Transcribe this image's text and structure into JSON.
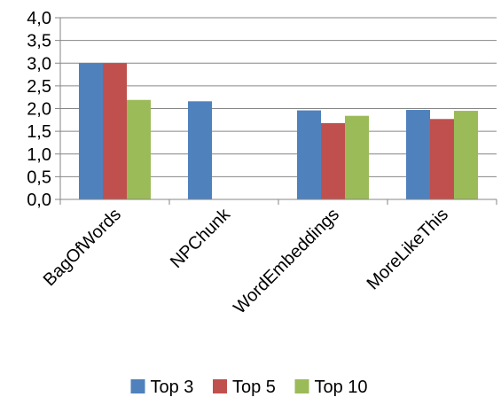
{
  "chart_data": {
    "type": "bar",
    "categories": [
      "BagOfWords",
      "NPChunk",
      "WordEmbeddings",
      "MoreLikeThis"
    ],
    "series": [
      {
        "name": "Top 3",
        "values": [
          3.0,
          2.16,
          1.96,
          1.97
        ],
        "color": "#4F81BD"
      },
      {
        "name": "Top 5",
        "values": [
          3.0,
          null,
          1.68,
          1.77
        ],
        "color": "#C0504D"
      },
      {
        "name": "Top 10",
        "values": [
          2.19,
          null,
          1.84,
          1.95
        ],
        "color": "#9BBB59"
      }
    ],
    "ylim": [
      0,
      4
    ],
    "yticks": [
      "0,0",
      "0,5",
      "1,0",
      "1,5",
      "2,0",
      "2,5",
      "3,0",
      "3,5",
      "4,0"
    ],
    "grid": true,
    "legend_position": "bottom",
    "title": "",
    "xlabel": "",
    "ylabel": ""
  }
}
